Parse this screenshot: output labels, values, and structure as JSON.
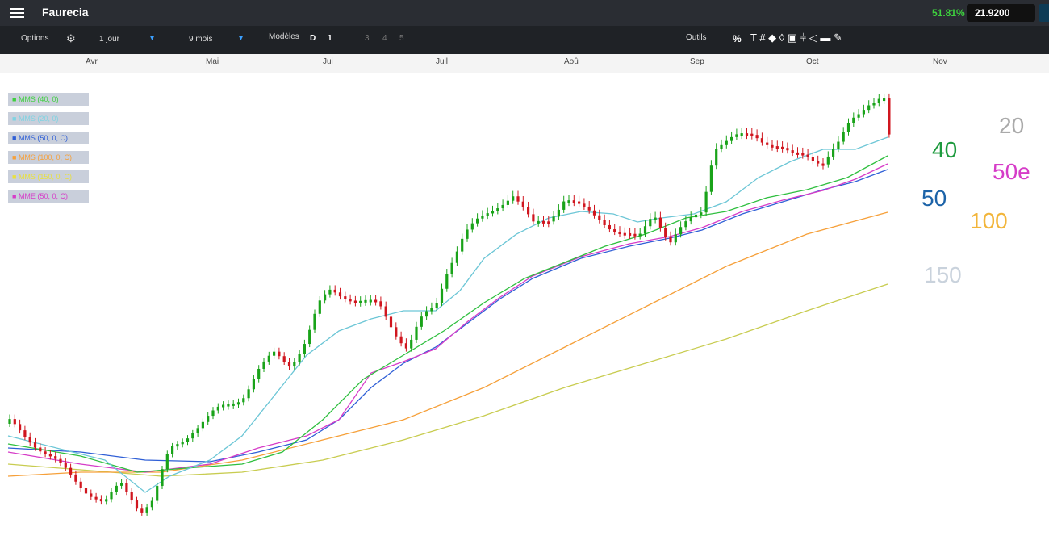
{
  "header": {
    "title": "Faurecia",
    "change": "51.81%",
    "price": "21.9200"
  },
  "toolbar": {
    "options": "Options",
    "interval": "1 jour",
    "period": "9 mois",
    "models": "Modèles",
    "layouts": [
      "D",
      "1",
      "3",
      "4",
      "5"
    ],
    "tools": "Outils",
    "percent": "%"
  },
  "months": [
    "Avr",
    "Mai",
    "Jui",
    "Juil",
    "Aoû",
    "Sep",
    "Oct",
    "Nov"
  ],
  "legend": [
    "MMS (40, 0)",
    "MMS (20, 0)",
    "MMS (50, 0, C)",
    "MMS (100, 0, C)",
    "MMS (150, 0, C)",
    "MME (50, 0, C)"
  ],
  "annotations": [
    "20",
    "40",
    "50e",
    "50",
    "100",
    "150"
  ]
}
